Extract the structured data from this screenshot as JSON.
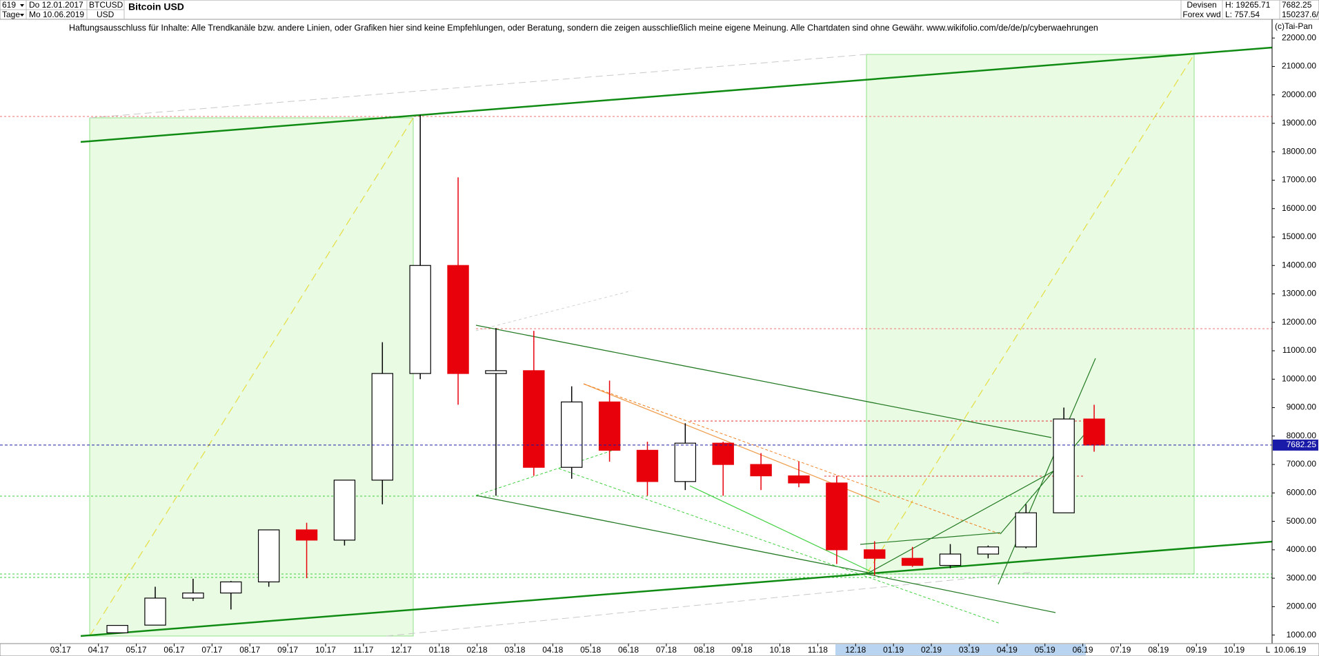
{
  "header": {
    "count": "619",
    "start": "Do 12.01.2017",
    "end": "Mo 10.06.2019",
    "period": "Tage",
    "symbol": "BTCUSD",
    "currency": "USD",
    "market": "Devisen",
    "source": "Forex vwd",
    "high": "H: 19265.71",
    "low": "L: 757.54",
    "volume": "150237.6/",
    "disclaimer": "Haftungsausschluss für Inhalte: Alle Trendkanäle bzw. andere Linien, oder Grafiken hier sind keine Empfehlungen, oder Beratung, sondern die zeigen ausschließlich meine eigene Meinung. Alle Chartdaten sind ohne Gewähr.  www.wikifolio.com/de/de/p/cyberwaehrungen",
    "copyright": "(c)Tai-Pan",
    "date_end": "10.06.19",
    "axis_mode": "L"
  },
  "chart_data": {
    "type": "candlestick",
    "title": "Bitcoin USD",
    "x": [
      1.5,
      2.5,
      3.5,
      4.5,
      5.5,
      6.5,
      7.5,
      8.5,
      9.5,
      10.5,
      11.5,
      12.5,
      13.5,
      14.5,
      15.5,
      16.5,
      17.5,
      18.5,
      19.5,
      20.5,
      21.5,
      22.5,
      23.5,
      24.5,
      25.5,
      26.5,
      27.3
    ],
    "open": [
      1080,
      1350,
      2300,
      2480,
      2870,
      4700,
      4340,
      6450,
      10200,
      14000,
      10200,
      10300,
      6900,
      9200,
      7500,
      6400,
      7750,
      7000,
      6600,
      6350,
      4000,
      3700,
      3450,
      3850,
      4100,
      5300,
      8600
    ],
    "high": [
      1350,
      2700,
      2980,
      2900,
      4700,
      4950,
      6450,
      11300,
      19300,
      17100,
      11800,
      11700,
      9750,
      9950,
      7800,
      8450,
      7800,
      7400,
      7100,
      6600,
      4300,
      4100,
      4200,
      4150,
      5600,
      9000,
      9100
    ],
    "low": [
      1070,
      1350,
      2200,
      1900,
      2700,
      3000,
      4150,
      5600,
      10000,
      9100,
      5900,
      6600,
      6500,
      7100,
      5900,
      6100,
      5900,
      6100,
      6200,
      3500,
      3100,
      3400,
      3350,
      3700,
      4050,
      5300,
      7450
    ],
    "close": [
      1340,
      2300,
      2480,
      2870,
      4700,
      4340,
      6450,
      10200,
      14000,
      10200,
      10300,
      6900,
      9200,
      7500,
      6400,
      7750,
      7000,
      6600,
      6350,
      4000,
      3700,
      3450,
      3850,
      4100,
      5300,
      8600,
      7682.25
    ],
    "up_color": "#000000",
    "down_color": "#e8000b",
    "last_price": 7682.25,
    "xlim": [
      -1.6,
      32
    ],
    "ylim": [
      700,
      22150
    ],
    "xticks": [
      {
        "value": 0,
        "label": "03.17"
      },
      {
        "value": 1,
        "label": "04.17"
      },
      {
        "value": 2,
        "label": "05.17"
      },
      {
        "value": 3,
        "label": "06.17"
      },
      {
        "value": 4,
        "label": "07.17"
      },
      {
        "value": 5,
        "label": "08.17"
      },
      {
        "value": 6,
        "label": "09.17"
      },
      {
        "value": 7,
        "label": "10.17"
      },
      {
        "value": 8,
        "label": "11.17"
      },
      {
        "value": 9,
        "label": "12.17"
      },
      {
        "value": 10,
        "label": "01.18"
      },
      {
        "value": 11,
        "label": "02.18"
      },
      {
        "value": 12,
        "label": "03.18"
      },
      {
        "value": 13,
        "label": "04.18"
      },
      {
        "value": 14,
        "label": "05.18"
      },
      {
        "value": 15,
        "label": "06.18"
      },
      {
        "value": 16,
        "label": "07.18"
      },
      {
        "value": 17,
        "label": "08.18"
      },
      {
        "value": 18,
        "label": "09.18"
      },
      {
        "value": 19,
        "label": "10.18"
      },
      {
        "value": 20,
        "label": "11.18"
      },
      {
        "value": 21,
        "label": "12.18"
      },
      {
        "value": 22,
        "label": "01.19"
      },
      {
        "value": 23,
        "label": "02.19"
      },
      {
        "value": 24,
        "label": "03.19"
      },
      {
        "value": 25,
        "label": "04.19"
      },
      {
        "value": 26,
        "label": "05.19"
      },
      {
        "value": 27,
        "label": "06.19"
      },
      {
        "value": 28,
        "label": "07.19"
      },
      {
        "value": 29,
        "label": "08.19"
      },
      {
        "value": 30,
        "label": "09.19"
      },
      {
        "value": 31,
        "label": "10.19"
      }
    ],
    "yticks": [
      {
        "value": 1000,
        "label": "1000.00"
      },
      {
        "value": 2000,
        "label": "2000.00"
      },
      {
        "value": 3000,
        "label": "3000.00"
      },
      {
        "value": 4000,
        "label": "4000.00"
      },
      {
        "value": 5000,
        "label": "5000.00"
      },
      {
        "value": 6000,
        "label": "6000.00"
      },
      {
        "value": 7000,
        "label": "7000.00"
      },
      {
        "value": 8000,
        "label": "8000.00"
      },
      {
        "value": 9000,
        "label": "9000.00"
      },
      {
        "value": 10000,
        "label": "10000.00"
      },
      {
        "value": 11000,
        "label": "11000.00"
      },
      {
        "value": 12000,
        "label": "12000.00"
      },
      {
        "value": 13000,
        "label": "13000.00"
      },
      {
        "value": 14000,
        "label": "14000.00"
      },
      {
        "value": 15000,
        "label": "15000.00"
      },
      {
        "value": 16000,
        "label": "16000.00"
      },
      {
        "value": 17000,
        "label": "17000.00"
      },
      {
        "value": 18000,
        "label": "18000.00"
      },
      {
        "value": 19000,
        "label": "19000.00"
      },
      {
        "value": 20000,
        "label": "20000.00"
      },
      {
        "value": 21000,
        "label": "21000.00"
      },
      {
        "value": 22000,
        "label": "22000.00"
      }
    ]
  }
}
